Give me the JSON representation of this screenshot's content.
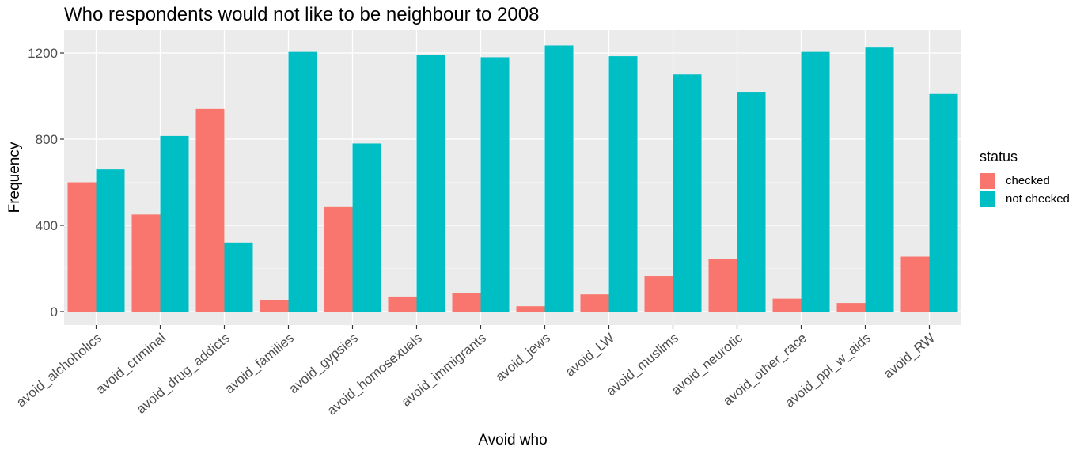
{
  "chart_data": {
    "type": "bar",
    "title": "Who respondents would not like to be neighbour to 2008",
    "xlabel": "Avoid who",
    "ylabel": "Frequency",
    "ylim": [
      0,
      1300
    ],
    "yticks": [
      0,
      400,
      800,
      1200
    ],
    "grid": true,
    "legend": {
      "title": "status",
      "position": "right"
    },
    "categories": [
      "avoid_alchoholics",
      "avoid_criminal",
      "avoid_drug_addicts",
      "avoid_families",
      "avoid_gypsies",
      "avoid_homosexuals",
      "avoid_immigrants",
      "avoid_jews",
      "avoid_LW",
      "avoid_muslims",
      "avoid_neurotic",
      "avoid_other_race",
      "avoid_ppl_w_aids",
      "avoid_RW"
    ],
    "series": [
      {
        "name": "checked",
        "color": "#F8766D",
        "values": [
          600,
          450,
          940,
          55,
          485,
          70,
          85,
          25,
          80,
          165,
          245,
          60,
          40,
          255
        ]
      },
      {
        "name": "not checked",
        "color": "#00BFC4",
        "values": [
          660,
          815,
          320,
          1205,
          780,
          1190,
          1180,
          1235,
          1185,
          1100,
          1020,
          1205,
          1225,
          1010
        ]
      }
    ]
  }
}
